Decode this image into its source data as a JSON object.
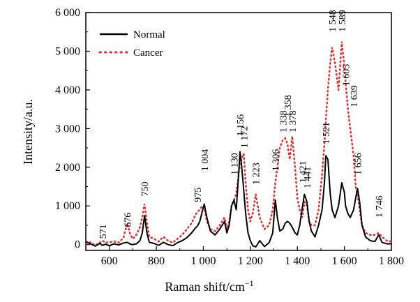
{
  "chart_data": {
    "type": "line",
    "title": "",
    "xlabel": "Raman shift/cm",
    "xlabel_superscript": "−1",
    "ylabel": "Intensity/a.u.",
    "xlim": [
      500,
      1800
    ],
    "ylim": [
      -150,
      6000
    ],
    "x_ticks": [
      600,
      800,
      1000,
      1200,
      1400,
      1600,
      1800
    ],
    "x_tick_labels": [
      "600",
      "800",
      "1 000",
      "1 200",
      "1 400",
      "1 600",
      "1 800"
    ],
    "y_ticks": [
      0,
      1000,
      2000,
      3000,
      4000,
      5000,
      6000
    ],
    "y_tick_labels": [
      "0",
      "1 000",
      "2 000",
      "3 000",
      "4 000",
      "5 000",
      "6 000"
    ],
    "grid": false,
    "legend_position": "top-left",
    "series": [
      {
        "name": "Normal",
        "color": "#000000",
        "style": "solid",
        "x": [
          500,
          520,
          540,
          560,
          571,
          585,
          600,
          620,
          640,
          660,
          676,
          690,
          700,
          715,
          730,
          740,
          750,
          760,
          770,
          790,
          810,
          830,
          850,
          870,
          890,
          910,
          930,
          950,
          965,
          975,
          985,
          995,
          1004,
          1015,
          1030,
          1050,
          1070,
          1090,
          1100,
          1110,
          1120,
          1130,
          1140,
          1150,
          1156,
          1162,
          1172,
          1180,
          1190,
          1200,
          1210,
          1223,
          1240,
          1260,
          1280,
          1295,
          1306,
          1315,
          1325,
          1338,
          1348,
          1358,
          1368,
          1378,
          1390,
          1400,
          1410,
          1421,
          1430,
          1441,
          1450,
          1460,
          1475,
          1490,
          1505,
          1515,
          1521,
          1530,
          1540,
          1548,
          1560,
          1575,
          1589,
          1600,
          1605,
          1615,
          1625,
          1639,
          1648,
          1656,
          1665,
          1675,
          1690,
          1710,
          1730,
          1746,
          1760,
          1780,
          1800
        ],
        "y": [
          80,
          20,
          -40,
          30,
          -20,
          10,
          -30,
          20,
          -10,
          40,
          60,
          10,
          0,
          20,
          100,
          300,
          750,
          300,
          60,
          30,
          -20,
          60,
          0,
          -30,
          50,
          100,
          180,
          300,
          420,
          480,
          600,
          850,
          1050,
          700,
          350,
          250,
          400,
          600,
          300,
          500,
          1000,
          1150,
          900,
          1800,
          2400,
          2100,
          1400,
          800,
          300,
          100,
          -30,
          -60,
          100,
          -50,
          50,
          300,
          1150,
          700,
          350,
          400,
          550,
          600,
          550,
          450,
          300,
          250,
          500,
          950,
          1300,
          1100,
          600,
          350,
          200,
          500,
          900,
          1600,
          2300,
          2200,
          1300,
          900,
          700,
          1000,
          1600,
          1350,
          1000,
          800,
          700,
          900,
          1200,
          1450,
          1100,
          500,
          200,
          100,
          80,
          250,
          60,
          20,
          20
        ]
      },
      {
        "name": "Cancer",
        "color": "#e03030",
        "style": "dotted",
        "x": [
          500,
          520,
          540,
          560,
          571,
          585,
          600,
          620,
          640,
          660,
          676,
          690,
          700,
          715,
          730,
          740,
          750,
          760,
          770,
          790,
          810,
          830,
          850,
          870,
          890,
          910,
          930,
          950,
          965,
          975,
          985,
          995,
          1004,
          1015,
          1030,
          1050,
          1070,
          1090,
          1100,
          1110,
          1120,
          1130,
          1140,
          1150,
          1156,
          1162,
          1172,
          1180,
          1190,
          1200,
          1210,
          1223,
          1240,
          1260,
          1280,
          1295,
          1306,
          1315,
          1325,
          1338,
          1348,
          1358,
          1368,
          1378,
          1390,
          1400,
          1410,
          1421,
          1430,
          1441,
          1450,
          1460,
          1475,
          1490,
          1505,
          1515,
          1521,
          1530,
          1540,
          1548,
          1560,
          1575,
          1589,
          1600,
          1605,
          1615,
          1625,
          1639,
          1648,
          1656,
          1665,
          1675,
          1690,
          1710,
          1730,
          1746,
          1760,
          1780,
          1800
        ],
        "y": [
          20,
          60,
          -20,
          50,
          100,
          50,
          60,
          80,
          50,
          180,
          550,
          250,
          150,
          250,
          450,
          700,
          1050,
          550,
          200,
          150,
          80,
          200,
          100,
          50,
          150,
          250,
          400,
          550,
          750,
          850,
          900,
          1000,
          950,
          600,
          400,
          350,
          500,
          700,
          400,
          600,
          1000,
          1150,
          1300,
          1800,
          2100,
          2200,
          2350,
          1600,
          900,
          600,
          800,
          1300,
          700,
          400,
          500,
          900,
          1600,
          2000,
          2500,
          2700,
          2750,
          2600,
          2200,
          2800,
          2000,
          1200,
          900,
          700,
          1100,
          1000,
          600,
          500,
          500,
          900,
          1800,
          2600,
          3200,
          4000,
          4700,
          5100,
          4700,
          4000,
          5250,
          4600,
          4200,
          3500,
          3000,
          2300,
          1500,
          1300,
          900,
          500,
          300,
          250,
          250,
          300,
          200,
          100,
          80
        ]
      }
    ],
    "annotations": [
      {
        "text": "571",
        "x": 571,
        "y": 150
      },
      {
        "text": "676",
        "x": 676,
        "y": 450
      },
      {
        "text": "750",
        "x": 750,
        "y": 1250
      },
      {
        "text": "975",
        "x": 975,
        "y": 1100
      },
      {
        "text": "1 004",
        "x": 1004,
        "y": 1900
      },
      {
        "text": "1 130",
        "x": 1130,
        "y": 1800
      },
      {
        "text": "1 156",
        "x": 1156,
        "y": 2800
      },
      {
        "text": "1 172",
        "x": 1172,
        "y": 2500
      },
      {
        "text": "1 223",
        "x": 1223,
        "y": 1550
      },
      {
        "text": "1 306",
        "x": 1306,
        "y": 1900
      },
      {
        "text": "1 338",
        "x": 1338,
        "y": 2900
      },
      {
        "text": "1 358",
        "x": 1358,
        "y": 3300
      },
      {
        "text": "1 378",
        "x": 1378,
        "y": 2900
      },
      {
        "text": "1 421",
        "x": 1421,
        "y": 1600
      },
      {
        "text": "1 441",
        "x": 1441,
        "y": 1450
      },
      {
        "text": "1 521",
        "x": 1521,
        "y": 2600
      },
      {
        "text": "1 548",
        "x": 1548,
        "y": 5500
      },
      {
        "text": "1 589",
        "x": 1589,
        "y": 5500
      },
      {
        "text": "1 605",
        "x": 1605,
        "y": 4100
      },
      {
        "text": "1 639",
        "x": 1639,
        "y": 3550
      },
      {
        "text": "1 656",
        "x": 1656,
        "y": 1800
      },
      {
        "text": "1 746",
        "x": 1746,
        "y": 700
      }
    ]
  }
}
